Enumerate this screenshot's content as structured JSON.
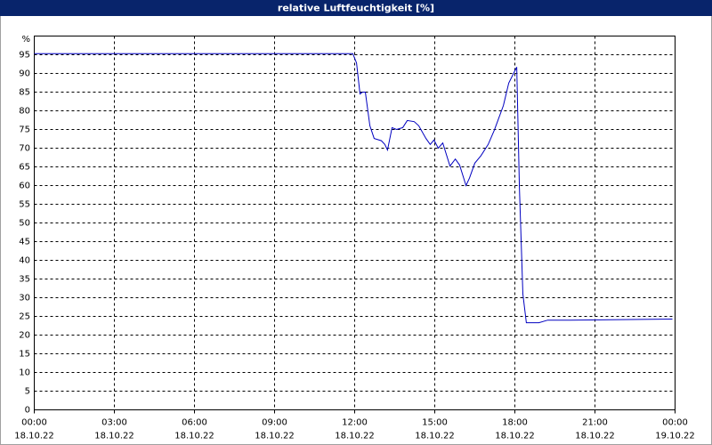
{
  "chart_data": {
    "type": "line",
    "title": "relative Luftfeuchtigkeit [%]",
    "y_label": "%",
    "x": [
      0,
      11.93,
      12.07,
      12.2,
      12.3,
      12.4,
      12.57,
      12.73,
      13.0,
      13.13,
      13.23,
      13.4,
      13.57,
      13.8,
      13.97,
      14.23,
      14.4,
      14.67,
      14.83,
      14.97,
      15.13,
      15.3,
      15.57,
      15.77,
      15.93,
      16.17,
      16.3,
      16.5,
      16.73,
      17.0,
      17.23,
      17.57,
      17.77,
      18.07,
      18.17,
      18.3,
      18.43,
      18.9,
      19.23,
      20.07,
      23.9
    ],
    "series": [
      {
        "name": "relative Luftfeuchtigkeit",
        "color": "#0000c0",
        "values": [
          95.3,
          95.3,
          92.8,
          84.5,
          85,
          85,
          76,
          72.6,
          72,
          71,
          69.5,
          75.5,
          75,
          75.5,
          77.4,
          77.1,
          76,
          72.6,
          71,
          72.2,
          70,
          71.4,
          65.2,
          67.1,
          65.5,
          60,
          62,
          66,
          68,
          71,
          74.8,
          81.4,
          87.4,
          91.7,
          59.5,
          31,
          23.3,
          23.3,
          24,
          24,
          24.3
        ]
      }
    ],
    "xlim": [
      0,
      24
    ],
    "xticks": [
      {
        "value": 0,
        "label": "00:00",
        "sublabel": "18.10.22"
      },
      {
        "value": 3,
        "label": "03:00",
        "sublabel": "18.10.22"
      },
      {
        "value": 6,
        "label": "06:00",
        "sublabel": "18.10.22"
      },
      {
        "value": 9,
        "label": "09:00",
        "sublabel": "18.10.22"
      },
      {
        "value": 12,
        "label": "12:00",
        "sublabel": "18.10.22"
      },
      {
        "value": 15,
        "label": "15:00",
        "sublabel": "18.10.22"
      },
      {
        "value": 18,
        "label": "18:00",
        "sublabel": "18.10.22"
      },
      {
        "value": 21,
        "label": "21:00",
        "sublabel": "18.10.22"
      },
      {
        "value": 24,
        "label": "00:00",
        "sublabel": "19.10.22"
      }
    ],
    "ylim": [
      0,
      100
    ],
    "yticks": [
      0,
      5,
      10,
      15,
      20,
      25,
      30,
      35,
      40,
      45,
      50,
      55,
      60,
      65,
      70,
      75,
      80,
      85,
      90,
      95
    ],
    "grid": true
  }
}
